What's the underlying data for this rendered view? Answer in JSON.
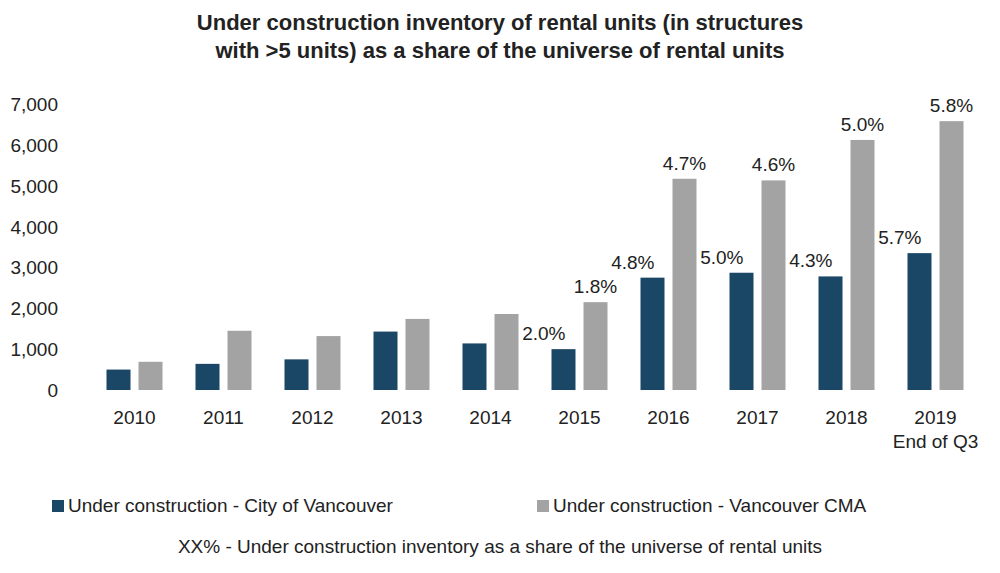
{
  "chart_data": {
    "type": "bar",
    "title": "Under construction inventory of rental units (in structures\nwith >5 units) as a share of the universe of rental units",
    "categories": [
      "2010",
      "2011",
      "2012",
      "2013",
      "2014",
      "2015",
      "2016",
      "2017",
      "2018",
      "2019\nEnd of Q3"
    ],
    "series": [
      {
        "name": "Under construction - City of Vancouver",
        "color": "#1b4766",
        "values": [
          500,
          640,
          750,
          1430,
          1140,
          1000,
          2750,
          2870,
          2780,
          3350
        ],
        "share_labels": [
          null,
          null,
          null,
          null,
          null,
          "2.0%",
          "4.8%",
          "5.0%",
          "4.3%",
          "5.7%"
        ]
      },
      {
        "name": "Under construction - Vancouver CMA",
        "color": "#a3a3a3",
        "values": [
          690,
          1450,
          1320,
          1740,
          1860,
          2150,
          5170,
          5130,
          6120,
          6580
        ],
        "share_labels": [
          null,
          null,
          null,
          null,
          null,
          "1.8%",
          "4.7%",
          "4.6%",
          "5.0%",
          "5.8%"
        ]
      }
    ],
    "ylim": [
      0,
      7000
    ],
    "yticks": [
      0,
      {
        "value": 1000,
        "label": "1,000"
      },
      {
        "value": 2000,
        "label": "2,000"
      },
      {
        "value": 3000,
        "label": "3,000"
      },
      {
        "value": 4000,
        "label": "4,000"
      },
      {
        "value": 5000,
        "label": "5,000"
      },
      {
        "value": 6000,
        "label": "6,000"
      },
      {
        "value": 7000,
        "label": "7,000"
      }
    ],
    "grid": false,
    "legend": "bottom",
    "annotation": "XX% - Under construction inventory as a share of the universe of rental units"
  }
}
